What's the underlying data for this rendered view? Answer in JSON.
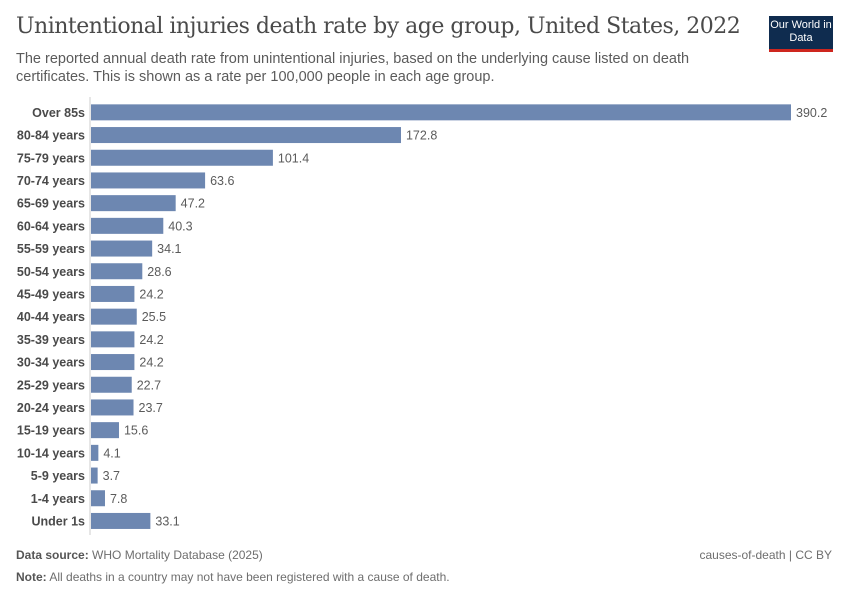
{
  "header": {
    "title": "Unintentional injuries death rate by age group, United States, 2022",
    "subtitle": "The reported annual death rate from unintentional injuries, based on the underlying cause listed on death certificates. This is shown as a rate per 100,000 people in each age group.",
    "logo": "Our World in Data"
  },
  "chart_data": {
    "type": "bar",
    "orientation": "horizontal",
    "categories": [
      "Over 85s",
      "80-84 years",
      "75-79 years",
      "70-74 years",
      "65-69 years",
      "60-64 years",
      "55-59 years",
      "50-54 years",
      "45-49 years",
      "40-44 years",
      "35-39 years",
      "30-34 years",
      "25-29 years",
      "20-24 years",
      "15-19 years",
      "10-14 years",
      "5-9 years",
      "1-4 years",
      "Under 1s"
    ],
    "values": [
      390.2,
      172.8,
      101.4,
      63.6,
      47.2,
      40.3,
      34.1,
      28.6,
      24.2,
      25.5,
      24.2,
      24.2,
      22.7,
      23.7,
      15.6,
      4.1,
      3.7,
      7.8,
      33.1
    ],
    "bar_color": "#6d87b1",
    "grid": false
  },
  "footer": {
    "source_label": "Data source:",
    "source": "WHO Mortality Database (2025)",
    "note_label": "Note:",
    "note": "All deaths in a country may not have been registered with a cause of death.",
    "license": "causes-of-death | CC BY"
  }
}
